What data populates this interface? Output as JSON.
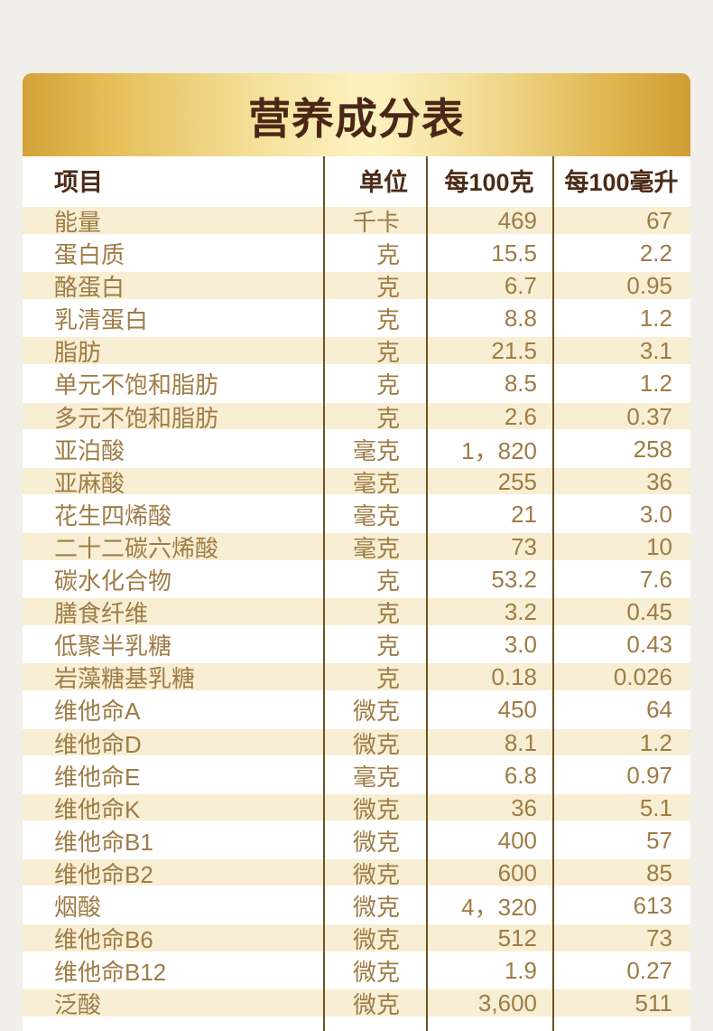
{
  "title": "营养成分表",
  "columns": {
    "item": "项目",
    "unit": "单位",
    "per_100g": "每100克",
    "per_100ml": "每100毫升"
  },
  "rows": [
    {
      "name": "能量",
      "unit": "千卡",
      "per_100g": "469",
      "per_100ml": "67"
    },
    {
      "name": "蛋白质",
      "unit": "克",
      "per_100g": "15.5",
      "per_100ml": "2.2"
    },
    {
      "name": "酪蛋白",
      "unit": "克",
      "per_100g": "6.7",
      "per_100ml": "0.95"
    },
    {
      "name": "乳清蛋白",
      "unit": "克",
      "per_100g": "8.8",
      "per_100ml": "1.2"
    },
    {
      "name": "脂肪",
      "unit": "克",
      "per_100g": "21.5",
      "per_100ml": "3.1"
    },
    {
      "name": "单元不饱和脂肪",
      "unit": "克",
      "per_100g": "8.5",
      "per_100ml": "1.2"
    },
    {
      "name": "多元不饱和脂肪",
      "unit": "克",
      "per_100g": "2.6",
      "per_100ml": "0.37"
    },
    {
      "name": "亚泊酸",
      "unit": "毫克",
      "per_100g": "1，820",
      "per_100ml": "258"
    },
    {
      "name": "亚麻酸",
      "unit": "毫克",
      "per_100g": "255",
      "per_100ml": "36"
    },
    {
      "name": "花生四烯酸",
      "unit": "毫克",
      "per_100g": "21",
      "per_100ml": "3.0"
    },
    {
      "name": "二十二碳六烯酸",
      "unit": "毫克",
      "per_100g": "73",
      "per_100ml": "10"
    },
    {
      "name": "碳水化合物",
      "unit": "克",
      "per_100g": "53.2",
      "per_100ml": "7.6"
    },
    {
      "name": "膳食纤维",
      "unit": "克",
      "per_100g": "3.2",
      "per_100ml": "0.45"
    },
    {
      "name": "低聚半乳糖",
      "unit": "克",
      "per_100g": "3.0",
      "per_100ml": "0.43"
    },
    {
      "name": "岩藻糖基乳糖",
      "unit": "克",
      "per_100g": "0.18",
      "per_100ml": "0.026"
    },
    {
      "name": "维他命A",
      "unit": "微克",
      "per_100g": "450",
      "per_100ml": "64"
    },
    {
      "name": "维他命D",
      "unit": "微克",
      "per_100g": "8.1",
      "per_100ml": "1.2"
    },
    {
      "name": "维他命E",
      "unit": "毫克",
      "per_100g": "6.8",
      "per_100ml": "0.97"
    },
    {
      "name": "维他命K",
      "unit": "微克",
      "per_100g": "36",
      "per_100ml": "5.1"
    },
    {
      "name": "维他命B1",
      "unit": "微克",
      "per_100g": "400",
      "per_100ml": "57"
    },
    {
      "name": "维他命B2",
      "unit": "微克",
      "per_100g": "600",
      "per_100ml": "85"
    },
    {
      "name": "烟酸",
      "unit": "微克",
      "per_100g": "4，320",
      "per_100ml": "613"
    },
    {
      "name": "维他命B6",
      "unit": "微克",
      "per_100g": "512",
      "per_100ml": "73"
    },
    {
      "name": "维他命B12",
      "unit": "微克",
      "per_100g": "1.9",
      "per_100ml": "0.27"
    },
    {
      "name": "泛酸",
      "unit": "微克",
      "per_100g": "3,600",
      "per_100ml": "511"
    }
  ],
  "colors": {
    "page_background": "#f1efea",
    "gold_edge": "#d2a237",
    "gold_center": "#fdf3c2",
    "title_text": "#4a2716",
    "header_text": "#4b2b18",
    "row_text": "#9e7c45",
    "stripe": "#f7eed3",
    "divider_line": "#6e5325"
  }
}
